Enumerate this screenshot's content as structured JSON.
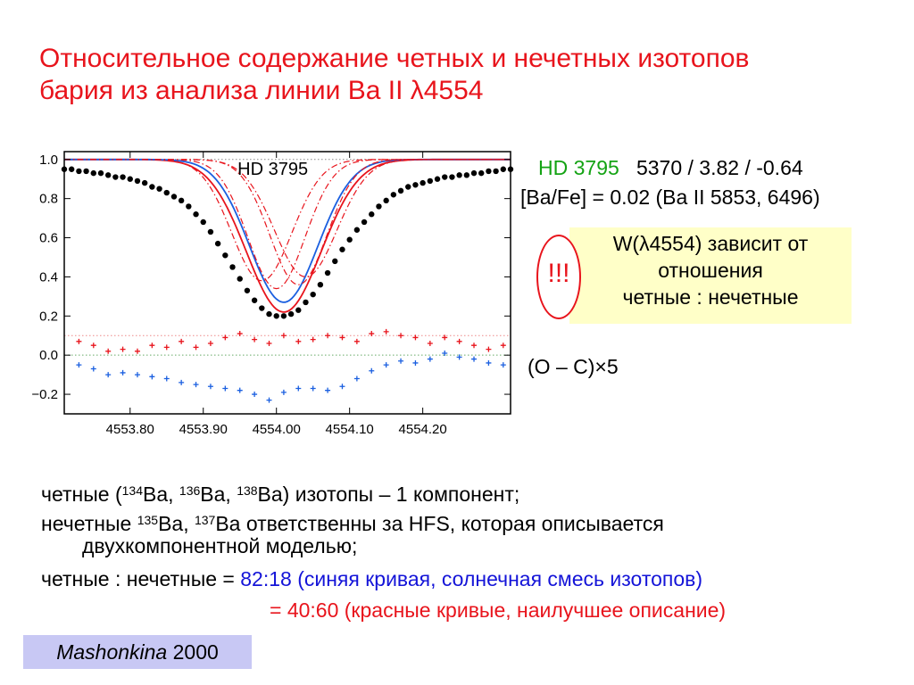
{
  "title": {
    "line1": "Относительное содержание четных и нечетных изотопов",
    "line2": "бария из анализа линии Ba II λ4554"
  },
  "info": {
    "star": "HD 3795",
    "params": "5370 / 3.82 / -0.64",
    "bafe": "[Ba/Fe] = 0.02 (Ba II 5853, 6496)"
  },
  "note": {
    "line1": "W(λ4554) зависит от",
    "line2": "отношения",
    "line3": "четные : нечетные",
    "warn": "!!!"
  },
  "residual_label": "(O – C)×5",
  "text": {
    "l1_a": "четные (",
    "l1_sup1": "134",
    "l1_b": "Ba, ",
    "l1_sup2": "136",
    "l1_c": "Ba, ",
    "l1_sup3": "138",
    "l1_d": "Ba) изотопы – 1 компонент;",
    "l2_a": "нечетные ",
    "l2_sup1": "135",
    "l2_b": "Ba, ",
    "l2_sup2": "137",
    "l2_c": "Ba ответственны за HFS, которая описывается",
    "l3": "двухкомпонентной моделью;",
    "l4_a": "четные : нечетные = ",
    "l4_b": "82:18 (синяя кривая, солнечная смесь изотопов)",
    "l5": "= 40:60 (красные кривые, наилучшее описание)"
  },
  "reference": {
    "author": "Mashonkina",
    "year": " 2000"
  },
  "chart_data": {
    "type": "line",
    "title": "HD 3795",
    "xlabel": "",
    "ylabel": "",
    "xlim": [
      4553.71,
      4554.32
    ],
    "ylim": [
      -0.3,
      1.04
    ],
    "xticks": [
      "4553.80",
      "4553.90",
      "4554.00",
      "4554.10",
      "4554.20"
    ],
    "xtick_values": [
      4553.8,
      4553.9,
      4554.0,
      4554.1,
      4554.2
    ],
    "yticks": [
      "1.0",
      "0.8",
      "0.6",
      "0.4",
      "0.2",
      "0.0",
      "−0.2"
    ],
    "ytick_values": [
      1.0,
      0.8,
      0.6,
      0.4,
      0.2,
      0.0,
      -0.2
    ],
    "reference_lines": [
      1.0,
      0.1,
      0.0
    ],
    "observed": {
      "x": [
        4553.71,
        4553.72,
        4553.73,
        4553.74,
        4553.75,
        4553.76,
        4553.77,
        4553.78,
        4553.79,
        4553.8,
        4553.81,
        4553.82,
        4553.83,
        4553.84,
        4553.85,
        4553.86,
        4553.87,
        4553.88,
        4553.89,
        4553.9,
        4553.91,
        4553.92,
        4553.93,
        4553.94,
        4553.95,
        4553.96,
        4553.97,
        4553.98,
        4553.99,
        4554.0,
        4554.01,
        4554.02,
        4554.03,
        4554.04,
        4554.05,
        4554.06,
        4554.07,
        4554.08,
        4554.09,
        4554.1,
        4554.11,
        4554.12,
        4554.13,
        4554.14,
        4554.15,
        4554.16,
        4554.17,
        4554.18,
        4554.19,
        4554.2,
        4554.21,
        4554.22,
        4554.23,
        4554.24,
        4554.25,
        4554.26,
        4554.27,
        4554.28,
        4554.29,
        4554.3,
        4554.31,
        4554.32
      ],
      "y": [
        0.95,
        0.95,
        0.94,
        0.94,
        0.93,
        0.93,
        0.92,
        0.91,
        0.91,
        0.9,
        0.89,
        0.88,
        0.86,
        0.85,
        0.83,
        0.81,
        0.79,
        0.76,
        0.72,
        0.68,
        0.63,
        0.57,
        0.51,
        0.45,
        0.39,
        0.33,
        0.28,
        0.24,
        0.21,
        0.2,
        0.2,
        0.21,
        0.23,
        0.27,
        0.31,
        0.36,
        0.42,
        0.48,
        0.54,
        0.59,
        0.64,
        0.68,
        0.72,
        0.76,
        0.79,
        0.82,
        0.84,
        0.86,
        0.87,
        0.88,
        0.89,
        0.9,
        0.91,
        0.91,
        0.92,
        0.92,
        0.93,
        0.93,
        0.94,
        0.94,
        0.95,
        0.95
      ]
    },
    "series": [
      {
        "color": "#e8141c",
        "style": "solid",
        "center": 4554.01,
        "depth": 0.78,
        "width": 0.072
      },
      {
        "color": "#1a5fe0",
        "style": "solid",
        "center": 4554.01,
        "depth": 0.73,
        "width": 0.066
      },
      {
        "color": "#e8141c",
        "style": "dashdot",
        "center": 4554.04,
        "depth": 0.6,
        "width": 0.06
      },
      {
        "color": "#e8141c",
        "style": "dashdot",
        "center": 4554.03,
        "depth": 0.64,
        "width": 0.055
      },
      {
        "color": "#e8141c",
        "style": "dashdot",
        "center": 4554.0,
        "depth": 0.66,
        "width": 0.055
      },
      {
        "color": "#e8141c",
        "style": "dashdot",
        "center": 4553.98,
        "depth": 0.62,
        "width": 0.058
      }
    ],
    "residuals_red": {
      "x": [
        4553.73,
        4553.75,
        4553.77,
        4553.79,
        4553.81,
        4553.83,
        4553.85,
        4553.87,
        4553.89,
        4553.91,
        4553.93,
        4553.95,
        4553.97,
        4553.99,
        4554.01,
        4554.03,
        4554.05,
        4554.07,
        4554.09,
        4554.11,
        4554.13,
        4554.15,
        4554.17,
        4554.19,
        4554.21,
        4554.23,
        4554.25,
        4554.27,
        4554.29,
        4554.31
      ],
      "y": [
        0.07,
        0.05,
        0.02,
        0.03,
        0.02,
        0.05,
        0.04,
        0.07,
        0.04,
        0.06,
        0.09,
        0.11,
        0.08,
        0.06,
        0.1,
        0.07,
        0.08,
        0.1,
        0.09,
        0.07,
        0.11,
        0.12,
        0.1,
        0.09,
        0.06,
        0.09,
        0.07,
        0.05,
        0.03,
        0.05
      ]
    },
    "residuals_blue": {
      "x": [
        4553.73,
        4553.75,
        4553.77,
        4553.79,
        4553.81,
        4553.83,
        4553.85,
        4553.87,
        4553.89,
        4553.91,
        4553.93,
        4553.95,
        4553.97,
        4553.99,
        4554.01,
        4554.03,
        4554.05,
        4554.07,
        4554.09,
        4554.11,
        4554.13,
        4554.15,
        4554.17,
        4554.19,
        4554.21,
        4554.23,
        4554.25,
        4554.27,
        4554.29,
        4554.31
      ],
      "y": [
        -0.05,
        -0.07,
        -0.1,
        -0.09,
        -0.1,
        -0.11,
        -0.12,
        -0.14,
        -0.15,
        -0.16,
        -0.17,
        -0.18,
        -0.2,
        -0.23,
        -0.19,
        -0.17,
        -0.17,
        -0.18,
        -0.16,
        -0.12,
        -0.08,
        -0.05,
        -0.03,
        -0.04,
        -0.02,
        0.01,
        -0.01,
        -0.02,
        -0.04,
        -0.05
      ]
    }
  }
}
